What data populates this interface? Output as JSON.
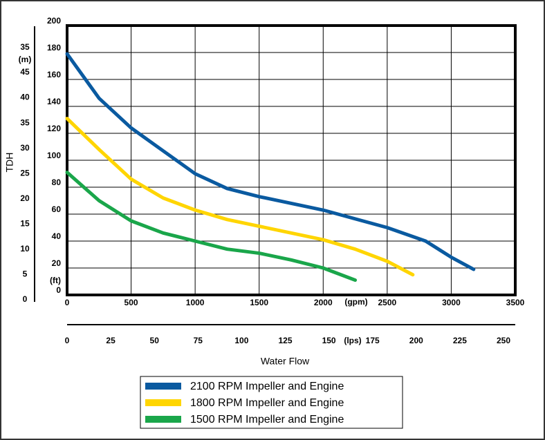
{
  "chart_data": {
    "type": "line",
    "y_label": "TDH",
    "x_label": "Water Flow",
    "xlim": [
      0,
      3500
    ],
    "xticks": [
      0,
      500,
      1000,
      1500,
      2000,
      2500,
      3000,
      3500
    ],
    "x_unit": "(gpm)",
    "ylim": [
      0,
      200
    ],
    "yticks": [
      0,
      20,
      40,
      60,
      80,
      100,
      120,
      140,
      160,
      180,
      200
    ],
    "y_unit": "(ft)",
    "y2lim": [
      0,
      45
    ],
    "y2ticks": [
      0,
      5,
      10,
      15,
      20,
      25,
      30,
      35,
      40,
      45
    ],
    "y2_top_label": "35",
    "y2_unit": "(m)",
    "x2lim": [
      0,
      250
    ],
    "x2ticks": [
      0,
      25,
      50,
      75,
      100,
      125,
      150,
      175,
      200,
      225,
      250
    ],
    "x2_unit": "(lps)",
    "grid": true,
    "series": [
      {
        "name": "2100 RPM Impeller and Engine",
        "color": "#0a5aa0",
        "x": [
          0,
          250,
          500,
          750,
          1000,
          1250,
          1500,
          2000,
          2500,
          2800,
          3000,
          3175
        ],
        "values": [
          179,
          146,
          124,
          107,
          90,
          79,
          73,
          63,
          50,
          40,
          28,
          19
        ]
      },
      {
        "name": "1800 RPM Impeller and Engine",
        "color": "#ffd500",
        "x": [
          0,
          250,
          500,
          750,
          1000,
          1250,
          1500,
          2000,
          2250,
          2500,
          2700
        ],
        "values": [
          131,
          108,
          86,
          72,
          63,
          56,
          51,
          41,
          34,
          25,
          15
        ]
      },
      {
        "name": "1500 RPM Impeller and Engine",
        "color": "#1aa64a",
        "x": [
          0,
          250,
          500,
          750,
          1000,
          1250,
          1500,
          1750,
          2000,
          2250
        ],
        "values": [
          91,
          70,
          55,
          46,
          40,
          34,
          31,
          26,
          20,
          11
        ]
      }
    ]
  }
}
